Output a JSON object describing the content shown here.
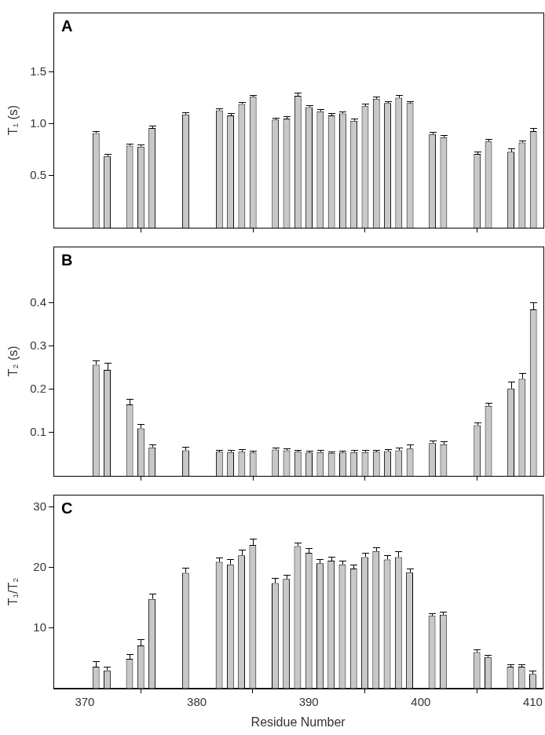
{
  "chart_data": [
    {
      "type": "bar",
      "title": "A",
      "y_label": "T₁ (s)",
      "color": "#c8c8c8",
      "grid": false,
      "tick_labels": "y",
      "x": [
        371,
        372,
        374,
        375,
        376,
        379,
        382,
        383,
        384,
        385,
        387,
        388,
        389,
        390,
        391,
        392,
        393,
        394,
        395,
        396,
        397,
        398,
        399,
        401,
        402,
        405,
        406,
        408,
        409,
        410
      ],
      "values": [
        0.91,
        0.69,
        0.79,
        0.78,
        0.96,
        1.09,
        1.13,
        1.08,
        1.19,
        1.26,
        1.04,
        1.05,
        1.27,
        1.16,
        1.12,
        1.08,
        1.1,
        1.03,
        1.17,
        1.24,
        1.2,
        1.25,
        1.2,
        0.9,
        0.87,
        0.71,
        0.83,
        0.73,
        0.82,
        0.93
      ],
      "errors": [
        0.02,
        0.02,
        0.02,
        0.02,
        0.02,
        0.02,
        0.02,
        0.02,
        0.02,
        0.02,
        0.02,
        0.02,
        0.03,
        0.02,
        0.02,
        0.02,
        0.02,
        0.02,
        0.02,
        0.02,
        0.02,
        0.03,
        0.02,
        0.02,
        0.02,
        0.02,
        0.02,
        0.03,
        0.02,
        0.03
      ],
      "xlim": [
        367.2,
        410.9
      ],
      "xticks": [
        370,
        380,
        390,
        400,
        410
      ],
      "ylim": [
        0,
        2.07
      ],
      "yticks": [
        {
          "value": 0.5,
          "label": "0.5"
        },
        {
          "value": 1,
          "label": "1.0"
        },
        {
          "value": 1.5,
          "label": "1.5"
        }
      ]
    },
    {
      "type": "bar",
      "title": "B",
      "y_label": "T₂ (s)",
      "color": "#c8c8c8",
      "grid": false,
      "tick_labels": "y",
      "x": [
        371,
        372,
        374,
        375,
        376,
        379,
        382,
        383,
        384,
        385,
        387,
        388,
        389,
        390,
        391,
        392,
        393,
        394,
        395,
        396,
        397,
        398,
        399,
        401,
        402,
        405,
        406,
        408,
        409,
        410
      ],
      "values": [
        0.257,
        0.245,
        0.165,
        0.11,
        0.066,
        0.059,
        0.056,
        0.055,
        0.056,
        0.054,
        0.061,
        0.059,
        0.056,
        0.054,
        0.055,
        0.053,
        0.054,
        0.055,
        0.055,
        0.056,
        0.057,
        0.059,
        0.063,
        0.076,
        0.073,
        0.117,
        0.162,
        0.202,
        0.224,
        0.385
      ],
      "errors": [
        0.01,
        0.017,
        0.012,
        0.01,
        0.007,
        0.008,
        0.004,
        0.004,
        0.005,
        0.004,
        0.004,
        0.004,
        0.004,
        0.004,
        0.004,
        0.003,
        0.004,
        0.004,
        0.004,
        0.004,
        0.004,
        0.006,
        0.009,
        0.006,
        0.007,
        0.006,
        0.006,
        0.015,
        0.013,
        0.017
      ],
      "xlim": [
        367.2,
        410.9
      ],
      "xticks": [
        370,
        380,
        390,
        400,
        410
      ],
      "ylim": [
        0,
        0.53
      ],
      "yticks": [
        0.1,
        0.2,
        0.3,
        0.4
      ]
    },
    {
      "type": "bar",
      "title": "C",
      "y_label": "T₁/T₂",
      "x_label": "Residue Number",
      "color": "#c8c8c8",
      "grid": false,
      "tick_labels": true,
      "x": [
        371,
        372,
        374,
        375,
        376,
        379,
        382,
        383,
        384,
        385,
        387,
        388,
        389,
        390,
        391,
        392,
        393,
        394,
        395,
        396,
        397,
        398,
        399,
        401,
        402,
        405,
        406,
        408,
        409,
        410
      ],
      "values": [
        3.6,
        3.0,
        4.9,
        7.1,
        14.8,
        19.1,
        20.9,
        20.5,
        22.0,
        23.7,
        17.4,
        18.1,
        23.5,
        22.4,
        20.7,
        21.1,
        20.5,
        19.8,
        21.7,
        22.7,
        21.3,
        21.7,
        19.2,
        12.0,
        12.2,
        6.0,
        5.2,
        3.6,
        3.6,
        2.4
      ],
      "errors": [
        0.9,
        0.6,
        0.8,
        1.0,
        0.9,
        0.9,
        0.7,
        0.9,
        0.9,
        1.1,
        0.8,
        0.7,
        0.6,
        0.8,
        0.7,
        0.6,
        0.6,
        0.7,
        0.7,
        0.6,
        0.7,
        0.9,
        0.6,
        0.4,
        0.5,
        0.4,
        0.3,
        0.4,
        0.4,
        0.6
      ],
      "xlim": [
        367.2,
        410.9
      ],
      "xticks": [
        370,
        380,
        390,
        400,
        410
      ],
      "ylim": [
        0,
        32
      ],
      "yticks": [
        10,
        20,
        30
      ]
    }
  ]
}
